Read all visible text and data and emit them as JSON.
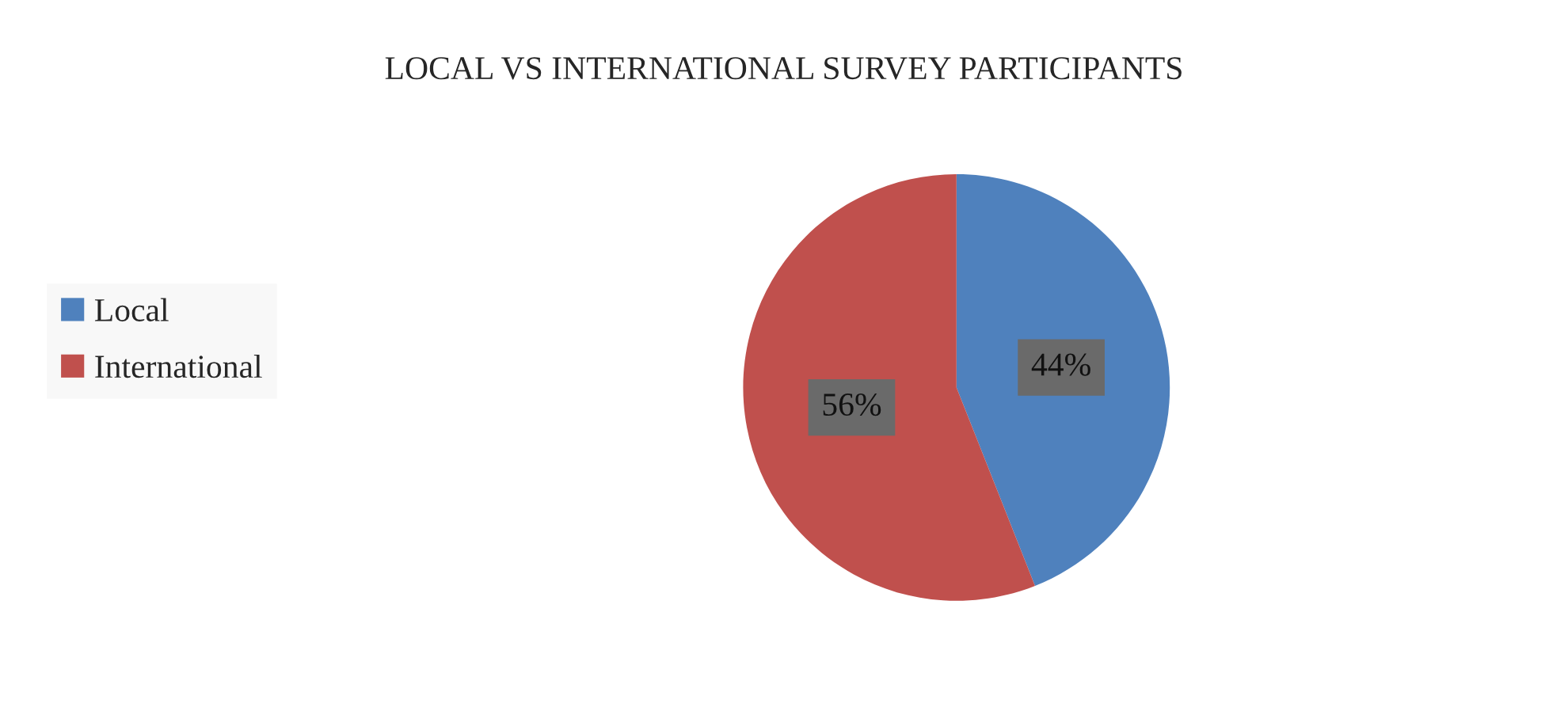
{
  "chart_data": {
    "type": "pie",
    "title": "LOCAL VS INTERNATIONAL SURVEY PARTICIPANTS",
    "categories": [
      "Local",
      "International"
    ],
    "values": [
      44,
      56
    ],
    "colors": [
      "#4f81bd",
      "#c0504d"
    ],
    "value_labels": [
      "44%",
      "56%"
    ],
    "legend": "left"
  }
}
